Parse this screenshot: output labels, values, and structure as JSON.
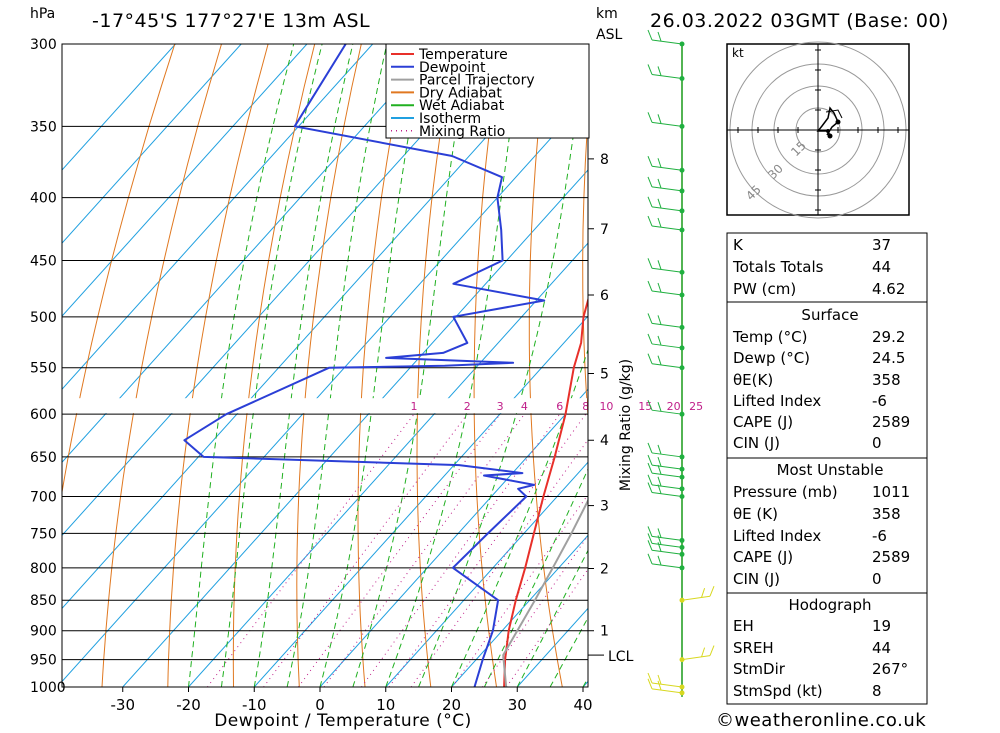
{
  "header": {
    "hpa_label": "hPa",
    "location": "-17°45'S 177°27'E 13m ASL",
    "km_label": "km",
    "asl_label": "ASL",
    "datetime": "26.03.2022 03GMT (Base: 00)"
  },
  "legend": {
    "items": [
      {
        "label": "Temperature",
        "color": "#e8302a",
        "style": "solid"
      },
      {
        "label": "Dewpoint",
        "color": "#2b3fd6",
        "style": "solid"
      },
      {
        "label": "Parcel Trajectory",
        "color": "#a0a0a0",
        "style": "solid"
      },
      {
        "label": "Dry Adiabat",
        "color": "#e07820",
        "style": "solid"
      },
      {
        "label": "Wet Adiabat",
        "color": "#20b020",
        "style": "solid"
      },
      {
        "label": "Isotherm",
        "color": "#20a0e0",
        "style": "solid"
      },
      {
        "label": "Mixing Ratio",
        "color": "#c0208a",
        "style": "dotted"
      }
    ]
  },
  "chart_data": {
    "type": "skew-t",
    "xlabel": "Dewpoint / Temperature (°C)",
    "ylabel_left": "hPa",
    "ylabel_right": "Mixing Ratio (g/kg)",
    "pressure_levels": [
      300,
      350,
      400,
      450,
      500,
      550,
      600,
      650,
      700,
      750,
      800,
      850,
      900,
      950,
      1000
    ],
    "temperature_ticks": [
      -30,
      -20,
      -10,
      0,
      10,
      20,
      30,
      40
    ],
    "xlim": [
      -40,
      40
    ],
    "ylim": [
      1000,
      300
    ],
    "km_ticks": [
      {
        "label": "8",
        "p": 372
      },
      {
        "label": "7",
        "p": 424
      },
      {
        "label": "6",
        "p": 480
      },
      {
        "label": "5",
        "p": 556
      },
      {
        "label": "4",
        "p": 630
      },
      {
        "label": "3",
        "p": 712
      },
      {
        "label": "2",
        "p": 801
      },
      {
        "label": "1",
        "p": 900
      }
    ],
    "lcl": {
      "label": "LCL",
      "p": 942
    },
    "mixing_ratio_labels": [
      "1",
      "2",
      "3",
      "4",
      "6",
      "8",
      "10",
      "15",
      "20",
      "25"
    ],
    "mixing_ratio_values": [
      1,
      2,
      3,
      4,
      6,
      8,
      10,
      15,
      20,
      25
    ],
    "series": [
      {
        "name": "Temperature",
        "color": "#e8302a",
        "points": [
          [
            1011,
            29.2
          ],
          [
            1000,
            28.0
          ],
          [
            950,
            24.4
          ],
          [
            900,
            21.0
          ],
          [
            850,
            17.9
          ],
          [
            800,
            14.9
          ],
          [
            750,
            11.5
          ],
          [
            700,
            7.9
          ],
          [
            650,
            4.2
          ],
          [
            600,
            0.0
          ],
          [
            550,
            -5.1
          ],
          [
            525,
            -7.4
          ],
          [
            500,
            -10.6
          ],
          [
            475,
            -13.2
          ],
          [
            450,
            -16.2
          ],
          [
            425,
            -19.2
          ],
          [
            400,
            -23.0
          ],
          [
            385,
            -25.4
          ],
          [
            375,
            -26.1
          ],
          [
            360,
            -28.0
          ],
          [
            350,
            -30.6
          ],
          [
            320,
            -35.0
          ],
          [
            300,
            -37.5
          ]
        ]
      },
      {
        "name": "Dewpoint",
        "color": "#2b3fd6",
        "points": [
          [
            1011,
            24.5
          ],
          [
            1000,
            23.5
          ],
          [
            950,
            21.0
          ],
          [
            900,
            18.6
          ],
          [
            850,
            15.2
          ],
          [
            800,
            3.9
          ],
          [
            750,
            4.5
          ],
          [
            700,
            5.3
          ],
          [
            690,
            3.0
          ],
          [
            685,
            4.9
          ],
          [
            673,
            -4.0
          ],
          [
            670,
            1.5
          ],
          [
            660,
            -9.2
          ],
          [
            650,
            -49.2
          ],
          [
            630,
            -54.4
          ],
          [
            600,
            -51.6
          ],
          [
            550,
            -42.3
          ],
          [
            548,
            -25.0
          ],
          [
            545,
            -15.0
          ],
          [
            540,
            -35.0
          ],
          [
            535,
            -27.0
          ],
          [
            525,
            -24.7
          ],
          [
            500,
            -30.4
          ],
          [
            485,
            -18.8
          ],
          [
            470,
            -34.9
          ],
          [
            450,
            -30.6
          ],
          [
            425,
            -35.0
          ],
          [
            400,
            -40.0
          ],
          [
            385,
            -42.1
          ],
          [
            370,
            -52.6
          ],
          [
            350,
            -80.6
          ],
          [
            300,
            -84.1
          ]
        ]
      },
      {
        "name": "Parcel Trajectory",
        "color": "#a0a0a0",
        "points": [
          [
            1011,
            29.2
          ],
          [
            942,
            23.5
          ],
          [
            900,
            22.3
          ],
          [
            850,
            20.8
          ],
          [
            800,
            19.1
          ],
          [
            750,
            17.2
          ],
          [
            700,
            15.0
          ],
          [
            650,
            12.4
          ],
          [
            600,
            9.3
          ],
          [
            550,
            5.7
          ],
          [
            500,
            1.3
          ],
          [
            450,
            -4.1
          ],
          [
            400,
            -10.9
          ],
          [
            350,
            -19.6
          ],
          [
            300,
            -30.5
          ]
        ]
      }
    ],
    "wind_barbs_p": [
      1011,
      1000,
      950,
      850,
      800,
      780,
      770,
      760,
      700,
      690,
      675,
      665,
      650,
      600,
      550,
      530,
      510,
      480,
      460,
      425,
      410,
      395,
      380,
      350,
      320,
      300
    ]
  },
  "hodograph": {
    "unit_label": "kt",
    "ring_labels": [
      "15",
      "30",
      "45"
    ]
  },
  "indices": {
    "rows": [
      {
        "label": "K",
        "value": "37"
      },
      {
        "label": "Totals Totals",
        "value": "44"
      },
      {
        "label": "PW (cm)",
        "value": "4.62"
      }
    ]
  },
  "surface": {
    "title": "Surface",
    "rows": [
      {
        "label": "Temp (°C)",
        "value": "29.2"
      },
      {
        "label": "Dewp (°C)",
        "value": "24.5"
      },
      {
        "label": "θE(K)",
        "value": "358"
      },
      {
        "label": "Lifted Index",
        "value": "-6"
      },
      {
        "label": "CAPE (J)",
        "value": "2589"
      },
      {
        "label": "CIN (J)",
        "value": "0"
      }
    ]
  },
  "most_unstable": {
    "title": "Most Unstable",
    "rows": [
      {
        "label": "Pressure (mb)",
        "value": "1011"
      },
      {
        "label": "θE (K)",
        "value": "358"
      },
      {
        "label": "Lifted Index",
        "value": "-6"
      },
      {
        "label": "CAPE (J)",
        "value": "2589"
      },
      {
        "label": "CIN (J)",
        "value": "0"
      }
    ]
  },
  "hodograph_table": {
    "title": "Hodograph",
    "rows": [
      {
        "label": "EH",
        "value": "19"
      },
      {
        "label": "SREH",
        "value": "44"
      },
      {
        "label": "StmDir",
        "value": "267°"
      },
      {
        "label": "StmSpd (kt)",
        "value": "8"
      }
    ]
  },
  "footer": {
    "credit": "©weatheronline.co.uk"
  }
}
